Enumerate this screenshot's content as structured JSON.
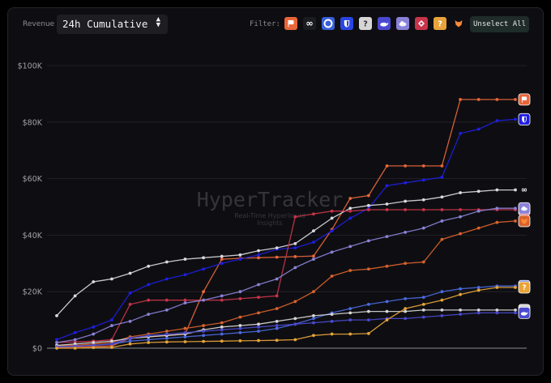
{
  "header": {
    "revenue_label": "Revenue",
    "select_value": "24h Cumulative",
    "filter_label": "Filter:",
    "unselect_label": "Unselect All"
  },
  "filter_chips": [
    {
      "icon": "flag-icon",
      "color": "#e8663a"
    },
    {
      "icon": "loop-icon",
      "color": "#1b1b22"
    },
    {
      "icon": "ring-icon",
      "color": "#3a5fd8"
    },
    {
      "icon": "shield-icon",
      "color": "#2a45e0"
    },
    {
      "icon": "question-icon",
      "color": "#d6d6d6"
    },
    {
      "icon": "whale-icon",
      "color": "#4a4ad0"
    },
    {
      "icon": "cloud-icon",
      "color": "#8a82d8"
    },
    {
      "icon": "diamond-icon",
      "color": "#c8344a"
    },
    {
      "icon": "question-icon",
      "color": "#e8a43a"
    },
    {
      "icon": "fox-icon",
      "color": "#d9622b"
    }
  ],
  "watermark": {
    "title": "HyperTracker",
    "subtitle_1": "Real-Time Hyperliquid",
    "subtitle_2": "Insights"
  },
  "chart_data": {
    "type": "line",
    "title": "",
    "xlabel": "",
    "ylabel": "",
    "ylim": [
      0,
      100000
    ],
    "yticks": [
      0,
      20000,
      40000,
      60000,
      80000,
      100000
    ],
    "ytick_labels": [
      "$0",
      "$20K",
      "$40K",
      "$60K",
      "$80K",
      "$100K"
    ],
    "x": [
      1,
      2,
      3,
      4,
      5,
      6,
      7,
      8,
      9,
      10,
      11,
      12,
      13,
      14,
      15,
      16,
      17,
      18,
      19,
      20,
      21,
      22,
      23,
      24,
      25,
      26
    ],
    "grid": "horizontal",
    "series": [
      {
        "icon": "flag-icon",
        "color": "#e8663a",
        "values": [
          300,
          400,
          600,
          800,
          3500,
          4000,
          4500,
          5000,
          20000,
          31500,
          31800,
          32000,
          32200,
          32400,
          32600,
          42000,
          53000,
          54000,
          64500,
          64500,
          64500,
          64500,
          88000,
          88000,
          88000,
          88000
        ]
      },
      {
        "icon": "shield-icon",
        "color": "#1e1ee0",
        "values": [
          3000,
          5500,
          7500,
          10000,
          19500,
          22500,
          24500,
          26000,
          28000,
          30000,
          31500,
          33000,
          35000,
          35500,
          37500,
          41500,
          46000,
          49500,
          57500,
          58500,
          59500,
          60500,
          76000,
          77500,
          80500,
          81000
        ]
      },
      {
        "icon": "loop-icon",
        "color": "#d8d8e0",
        "values": [
          11500,
          18500,
          23500,
          24500,
          26500,
          29000,
          30500,
          31500,
          32000,
          32500,
          33000,
          34500,
          35500,
          37000,
          41500,
          46000,
          49500,
          50500,
          51000,
          52000,
          52500,
          53500,
          55000,
          55500,
          56000,
          56000
        ]
      },
      {
        "icon": "diamond-icon",
        "color": "#c8344a",
        "values": [
          2000,
          2200,
          2500,
          3000,
          15500,
          17000,
          17000,
          17000,
          17000,
          17000,
          17500,
          18000,
          18500,
          46500,
          47500,
          48500,
          48500,
          49000,
          49000,
          49000,
          49000,
          49000,
          49000,
          49000,
          49000,
          49000
        ]
      },
      {
        "icon": "cloud-icon",
        "color": "#8a82d8",
        "values": [
          2000,
          3000,
          5000,
          8000,
          9500,
          12000,
          13500,
          16000,
          17000,
          18500,
          20000,
          22500,
          24500,
          28500,
          31500,
          34000,
          36000,
          38000,
          39500,
          41000,
          42500,
          45000,
          46500,
          48500,
          49500,
          49500
        ]
      },
      {
        "icon": "fox-icon",
        "color": "#d9622b",
        "values": [
          800,
          1000,
          1500,
          2000,
          4000,
          5000,
          6000,
          7000,
          8000,
          9000,
          11000,
          12500,
          14000,
          16500,
          20000,
          25500,
          27500,
          28000,
          29000,
          30000,
          30500,
          38500,
          40500,
          42500,
          44500,
          45000
        ]
      },
      {
        "icon": "question-icon",
        "color": "#4a6ae0",
        "values": [
          500,
          700,
          1000,
          1500,
          2500,
          3000,
          3500,
          4000,
          4500,
          5000,
          5500,
          6000,
          7000,
          8500,
          10500,
          12500,
          14000,
          15500,
          16500,
          17500,
          18000,
          20000,
          21000,
          21500,
          22000,
          22000
        ]
      },
      {
        "icon": "question-icon",
        "color": "#d6d6d6",
        "values": [
          1000,
          1500,
          2000,
          2500,
          3500,
          4000,
          4500,
          5000,
          6500,
          7500,
          8000,
          8500,
          9500,
          10500,
          11500,
          12000,
          12500,
          13000,
          13000,
          13000,
          13500,
          13500,
          13500,
          13500,
          13500,
          13500
        ]
      },
      {
        "icon": "whale-icon",
        "color": "#4a4ad0",
        "values": [
          500,
          700,
          1000,
          1500,
          3500,
          4500,
          5000,
          5500,
          6000,
          6500,
          7000,
          7500,
          8000,
          8500,
          9000,
          9500,
          10000,
          10000,
          10500,
          10500,
          11000,
          11500,
          12000,
          12500,
          12500,
          12500
        ]
      },
      {
        "icon": "question-icon",
        "color": "#e8a43a",
        "values": [
          0,
          0,
          200,
          300,
          1500,
          2000,
          2200,
          2300,
          2400,
          2500,
          2600,
          2700,
          2800,
          3000,
          4500,
          5000,
          5000,
          5200,
          10000,
          14000,
          15500,
          17000,
          19000,
          20500,
          21500,
          21500
        ]
      }
    ]
  }
}
